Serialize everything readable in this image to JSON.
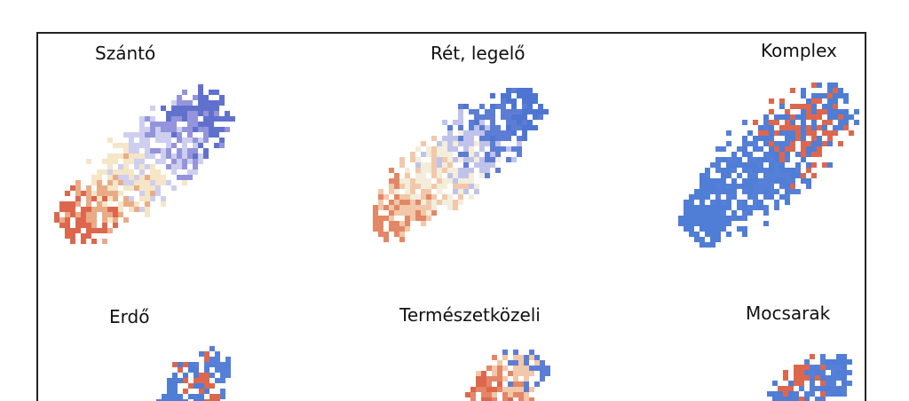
{
  "panels": [
    {
      "label": "Szántó"
    },
    {
      "label": "Rét, legelő"
    },
    {
      "label": "Komplex"
    },
    {
      "label": "Erdő"
    },
    {
      "label": "Természetközeli"
    },
    {
      "label": "Mocsarak"
    }
  ]
}
